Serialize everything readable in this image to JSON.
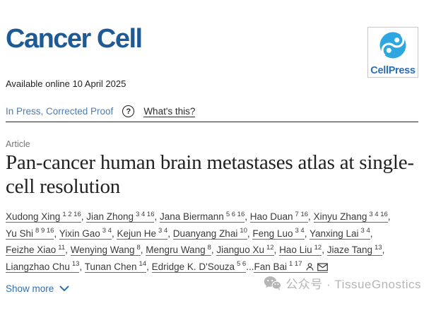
{
  "header": {
    "journal_title": "Cancer Cell",
    "logo_text": "CellPress",
    "available_online": "Available online 10 April 2025"
  },
  "status": {
    "label": "In Press, Corrected Proof",
    "help_glyph": "?",
    "whats_this_label": "What's this?"
  },
  "article": {
    "type_label": "Article",
    "title": "Pan-cancer human brain metastases atlas at single-cell resolution"
  },
  "authors": {
    "list": [
      {
        "name": "Xudong Xing",
        "sup": "1 2 16"
      },
      {
        "name": "Jian Zhong",
        "sup": "3 4 16"
      },
      {
        "name": "Jana Biermann",
        "sup": "5 6 16"
      },
      {
        "name": "Hao Duan",
        "sup": "7 16"
      },
      {
        "name": "Xinyu Zhang",
        "sup": "3 4 16"
      },
      {
        "name": "Yu Shi",
        "sup": "8 9 16"
      },
      {
        "name": "Yixin Gao",
        "sup": "3 4"
      },
      {
        "name": "Kejun He",
        "sup": "3 4"
      },
      {
        "name": "Duanyang Zhai",
        "sup": "10"
      },
      {
        "name": "Feng Luo",
        "sup": "3 4"
      },
      {
        "name": "Yanxing Lai",
        "sup": "3 4"
      },
      {
        "name": "Feizhe Xiao",
        "sup": "11"
      },
      {
        "name": "Wenying Wang",
        "sup": "8"
      },
      {
        "name": "Mengru Wang",
        "sup": "8"
      },
      {
        "name": "Jianguo Xu",
        "sup": "12"
      },
      {
        "name": "Hao Liu",
        "sup": "12"
      },
      {
        "name": "Jiaze Tang",
        "sup": "13"
      },
      {
        "name": "Liangzhao Chu",
        "sup": "13"
      },
      {
        "name": "Tunan Chen",
        "sup": "14"
      },
      {
        "name": "Edridge K. D'Souza",
        "sup": "5 6"
      }
    ],
    "ellipsis": "...",
    "last_author": {
      "name": "Fan Bai",
      "sup": "1 17"
    }
  },
  "footer": {
    "show_more_label": "Show more"
  },
  "watermark": {
    "text": "公众号 · TissueGnostics"
  },
  "colors": {
    "journal_blue": "#1e5a96",
    "cellpress_logo_blue": "#2ea7e0",
    "cellpress_text_blue": "#2a6fb7",
    "status_blue": "#4a7eb5",
    "link_blue": "#2f6fae",
    "watermark_gray": "#b5b5b5"
  }
}
